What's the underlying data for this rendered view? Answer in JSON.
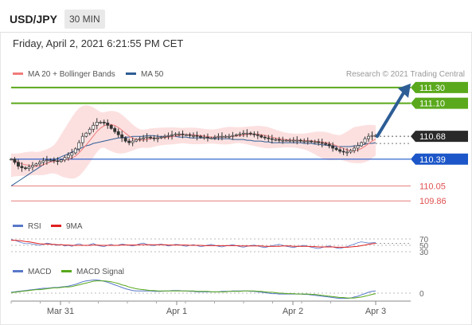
{
  "header": {
    "symbol": "USD/JPY",
    "timeframe": "30 MIN",
    "datetime": "Friday, April 2, 2021 6:21:55 PM CET"
  },
  "legend": {
    "items": [
      {
        "label": "MA 20 + Bollinger Bands",
        "color": "#f07b7b"
      },
      {
        "label": "MA 50",
        "color": "#2d5d95"
      }
    ],
    "credit": "Research © 2021 Trading Central"
  },
  "colors": {
    "resistance": "#5aa91c",
    "support_blue": "#1c56c8",
    "support_red": "#e05050",
    "current": "#2a2a2a",
    "arrow": "#2d5d95",
    "bollinger": "#fbd6d6"
  },
  "chart_data": [
    {
      "type": "line",
      "title": "USD/JPY",
      "xlabel": "",
      "ylabel": "",
      "x_ticks": [
        "Mar 31",
        "Apr 1",
        "Apr 2",
        "Apr 3"
      ],
      "ylim": [
        109.7,
        111.4
      ],
      "levels": [
        {
          "label": "111.30",
          "value": 111.3,
          "kind": "resistance"
        },
        {
          "label": "111.10",
          "value": 111.1,
          "kind": "resistance"
        },
        {
          "label": "110.68",
          "value": 110.68,
          "kind": "current"
        },
        {
          "label": "110.39",
          "value": 110.39,
          "kind": "support"
        },
        {
          "label": "110.05",
          "value": 110.05,
          "kind": "support2"
        },
        {
          "label": "109.86",
          "value": 109.86,
          "kind": "support2"
        }
      ],
      "series": [
        {
          "name": "MA 20 + Bollinger Bands",
          "color": "#f07b7b"
        },
        {
          "name": "MA 50",
          "color": "#2d5d95"
        }
      ],
      "close": [
        110.39,
        110.35,
        110.3,
        110.28,
        110.27,
        110.29,
        110.31,
        110.33,
        110.35,
        110.37,
        110.38,
        110.38,
        110.37,
        110.36,
        110.38,
        110.41,
        110.44,
        110.47,
        110.52,
        110.6,
        110.68,
        110.72,
        110.77,
        110.82,
        110.86,
        110.86,
        110.85,
        110.82,
        110.78,
        110.74,
        110.7,
        110.66,
        110.62,
        110.6,
        110.62,
        110.64,
        110.65,
        110.66,
        110.67,
        110.66,
        110.65,
        110.66,
        110.67,
        110.68,
        110.69,
        110.7,
        110.71,
        110.71,
        110.7,
        110.7,
        110.69,
        110.69,
        110.68,
        110.67,
        110.67,
        110.66,
        110.66,
        110.67,
        110.68,
        110.68,
        110.68,
        110.68,
        110.69,
        110.7,
        110.71,
        110.72,
        110.72,
        110.71,
        110.7,
        110.69,
        110.67,
        110.66,
        110.65,
        110.64,
        110.64,
        110.63,
        110.63,
        110.63,
        110.63,
        110.63,
        110.63,
        110.62,
        110.62,
        110.62,
        110.61,
        110.61,
        110.6,
        110.59,
        110.58,
        110.56,
        110.53,
        110.51,
        110.49,
        110.48,
        110.48,
        110.5,
        110.53,
        110.56,
        110.6,
        110.65,
        110.68,
        110.69,
        110.69
      ],
      "ma50": [
        110.05,
        110.08,
        110.11,
        110.14,
        110.17,
        110.2,
        110.23,
        110.26,
        110.29,
        110.32,
        110.34,
        110.36,
        110.38,
        110.4,
        110.42,
        110.44,
        110.46,
        110.48,
        110.5,
        110.52,
        110.54,
        110.56,
        110.57,
        110.59,
        110.6,
        110.61,
        110.62,
        110.63,
        110.64,
        110.65,
        110.66,
        110.66,
        110.67,
        110.67,
        110.68,
        110.68,
        110.68,
        110.68,
        110.69,
        110.69,
        110.69,
        110.68,
        110.68,
        110.68,
        110.68,
        110.68,
        110.68,
        110.67,
        110.67,
        110.67,
        110.66,
        110.66,
        110.66,
        110.66,
        110.66,
        110.66,
        110.65,
        110.65,
        110.65,
        110.65,
        110.65,
        110.65,
        110.64,
        110.64,
        110.64,
        110.64,
        110.63,
        110.63,
        110.62,
        110.62,
        110.62,
        110.61,
        110.61,
        110.6,
        110.6,
        110.6,
        110.6,
        110.6,
        110.6,
        110.6,
        110.6,
        110.6,
        110.59,
        110.59,
        110.59,
        110.58,
        110.58,
        110.57,
        110.57,
        110.56,
        110.56,
        110.55,
        110.55,
        110.55,
        110.55,
        110.55,
        110.56,
        110.56,
        110.57,
        110.58,
        110.59,
        110.59,
        110.6
      ],
      "forecast": {
        "from": 110.68,
        "to": 111.3
      }
    },
    {
      "type": "line",
      "title": "",
      "ylim": [
        20,
        80
      ],
      "y_ticks": [
        70,
        50,
        30
      ],
      "series": [
        {
          "name": "RSI",
          "color": "#5878c8"
        },
        {
          "name": "9MA",
          "color": "#e02020"
        }
      ],
      "rsi": [
        68,
        66,
        62,
        58,
        55,
        56,
        54,
        52,
        50,
        53,
        57,
        55,
        52,
        50,
        53,
        48,
        50,
        47,
        52,
        55,
        51,
        49,
        52,
        56,
        50,
        48,
        46,
        50,
        53,
        49,
        51,
        54,
        52,
        50,
        48,
        51,
        55,
        57,
        53,
        50,
        49,
        52,
        54,
        51,
        48,
        50,
        53,
        52,
        49,
        47,
        50,
        52,
        49,
        46,
        48,
        51,
        53,
        50,
        47,
        45,
        48,
        50,
        52,
        49,
        46,
        44,
        47,
        49,
        51,
        48,
        45,
        43,
        46,
        49,
        51,
        53,
        50,
        47,
        45,
        43,
        46,
        48,
        50,
        47,
        44,
        42,
        40,
        43,
        46,
        48,
        45,
        42,
        40,
        43,
        46,
        50,
        54,
        58,
        61,
        59,
        57,
        58,
        59
      ],
      "ma9": [
        66,
        66,
        65,
        64,
        62,
        61,
        59,
        57,
        55,
        54,
        54,
        53,
        53,
        52,
        52,
        51,
        51,
        50,
        50,
        50,
        50,
        50,
        50,
        51,
        51,
        50,
        50,
        50,
        50,
        50,
        50,
        51,
        51,
        51,
        51,
        51,
        52,
        52,
        52,
        52,
        52,
        52,
        52,
        52,
        51,
        51,
        51,
        51,
        51,
        51,
        50,
        50,
        50,
        50,
        49,
        49,
        49,
        49,
        49,
        49,
        49,
        49,
        49,
        49,
        48,
        48,
        48,
        48,
        48,
        48,
        48,
        47,
        47,
        47,
        47,
        47,
        48,
        48,
        48,
        47,
        47,
        47,
        47,
        47,
        46,
        46,
        45,
        45,
        45,
        45,
        45,
        44,
        44,
        44,
        44,
        45,
        46,
        47,
        49,
        51,
        53,
        55,
        56
      ]
    },
    {
      "type": "line",
      "title": "",
      "y_ticks": [
        0
      ],
      "series": [
        {
          "name": "MACD",
          "color": "#5878c8"
        },
        {
          "name": "MACD Signal",
          "color": "#56a81c"
        }
      ],
      "macd": [
        0.02,
        0.03,
        0.04,
        0.05,
        0.06,
        0.07,
        0.08,
        0.09,
        0.1,
        0.11,
        0.11,
        0.12,
        0.13,
        0.13,
        0.14,
        0.15,
        0.16,
        0.18,
        0.2,
        0.23,
        0.26,
        0.28,
        0.29,
        0.3,
        0.3,
        0.29,
        0.27,
        0.25,
        0.22,
        0.19,
        0.16,
        0.13,
        0.1,
        0.08,
        0.06,
        0.05,
        0.05,
        0.05,
        0.05,
        0.05,
        0.04,
        0.04,
        0.04,
        0.05,
        0.05,
        0.06,
        0.06,
        0.06,
        0.05,
        0.05,
        0.04,
        0.04,
        0.03,
        0.03,
        0.03,
        0.03,
        0.03,
        0.03,
        0.03,
        0.04,
        0.04,
        0.04,
        0.05,
        0.05,
        0.05,
        0.05,
        0.05,
        0.04,
        0.04,
        0.03,
        0.02,
        0.01,
        0.0,
        -0.01,
        -0.01,
        -0.02,
        -0.02,
        -0.02,
        -0.02,
        -0.02,
        -0.02,
        -0.02,
        -0.03,
        -0.03,
        -0.04,
        -0.05,
        -0.06,
        -0.07,
        -0.08,
        -0.09,
        -0.1,
        -0.11,
        -0.12,
        -0.12,
        -0.12,
        -0.11,
        -0.09,
        -0.07,
        -0.04,
        -0.01,
        0.02,
        0.04,
        0.05
      ],
      "signal": [
        0.01,
        0.02,
        0.03,
        0.04,
        0.05,
        0.06,
        0.07,
        0.08,
        0.08,
        0.09,
        0.1,
        0.11,
        0.12,
        0.12,
        0.13,
        0.14,
        0.14,
        0.15,
        0.17,
        0.19,
        0.21,
        0.23,
        0.25,
        0.27,
        0.28,
        0.28,
        0.28,
        0.27,
        0.26,
        0.24,
        0.22,
        0.19,
        0.17,
        0.14,
        0.12,
        0.1,
        0.09,
        0.08,
        0.07,
        0.06,
        0.06,
        0.05,
        0.05,
        0.05,
        0.05,
        0.05,
        0.05,
        0.05,
        0.05,
        0.05,
        0.05,
        0.05,
        0.04,
        0.04,
        0.04,
        0.04,
        0.03,
        0.03,
        0.03,
        0.03,
        0.03,
        0.04,
        0.04,
        0.04,
        0.04,
        0.05,
        0.05,
        0.05,
        0.05,
        0.04,
        0.04,
        0.03,
        0.02,
        0.02,
        0.01,
        0.0,
        0.0,
        -0.01,
        -0.01,
        -0.01,
        -0.02,
        -0.02,
        -0.02,
        -0.02,
        -0.03,
        -0.03,
        -0.04,
        -0.05,
        -0.06,
        -0.07,
        -0.08,
        -0.09,
        -0.1,
        -0.1,
        -0.11,
        -0.11,
        -0.11,
        -0.1,
        -0.09,
        -0.07,
        -0.05,
        -0.03,
        -0.01
      ]
    }
  ]
}
